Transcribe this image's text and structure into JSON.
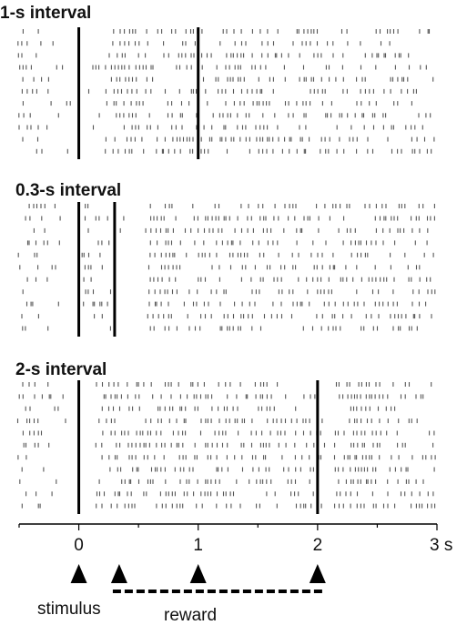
{
  "chart_data": {
    "type": "scatter",
    "subtype": "spike-raster",
    "xunit": "s",
    "xlim": [
      -0.5,
      3
    ],
    "x_ticks": [
      0,
      1,
      2,
      3
    ],
    "x_tick_labels": [
      "0",
      "1",
      "2",
      "3 s"
    ],
    "panels": [
      {
        "title": "1-s interval",
        "trials": 11,
        "markers": [
          0,
          1
        ],
        "density": [
          [
            -0.5,
            0.4
          ],
          [
            0,
            0.0
          ],
          [
            0.1,
            0.18
          ],
          [
            0.2,
            0.0
          ],
          [
            0.25,
            0.65
          ],
          [
            0.5,
            0.6
          ],
          [
            0.6,
            0.35
          ],
          [
            1,
            0.45
          ],
          [
            1.5,
            0.5
          ],
          [
            2,
            0.45
          ],
          [
            3,
            0.35
          ]
        ]
      },
      {
        "title": "0.3-s interval",
        "trials": 11,
        "markers": [
          0,
          0.3
        ],
        "density": [
          [
            -0.5,
            0.42
          ],
          [
            0,
            0.0
          ],
          [
            0.05,
            0.4
          ],
          [
            0.28,
            0.4
          ],
          [
            0.3,
            0.0
          ],
          [
            0.55,
            0.02
          ],
          [
            0.6,
            0.8
          ],
          [
            0.75,
            0.8
          ],
          [
            0.85,
            0.3
          ],
          [
            1,
            0.4
          ],
          [
            1.6,
            0.55
          ],
          [
            2,
            0.4
          ],
          [
            3,
            0.45
          ]
        ]
      },
      {
        "title": "2-s interval",
        "trials": 11,
        "markers": [
          0,
          2
        ],
        "density": [
          [
            -0.5,
            0.4
          ],
          [
            0,
            0.0
          ],
          [
            0.1,
            0.02
          ],
          [
            0.25,
            0.6
          ],
          [
            1,
            0.55
          ],
          [
            2,
            0.45
          ],
          [
            2.1,
            0.05
          ],
          [
            2.25,
            0.75
          ],
          [
            2.45,
            0.75
          ],
          [
            2.6,
            0.4
          ],
          [
            3,
            0.35
          ]
        ]
      }
    ],
    "events": {
      "stimulus": {
        "label": "stimulus",
        "x": 0
      },
      "reward": {
        "label": "reward",
        "times": [
          0.3,
          1,
          2
        ]
      }
    }
  }
}
